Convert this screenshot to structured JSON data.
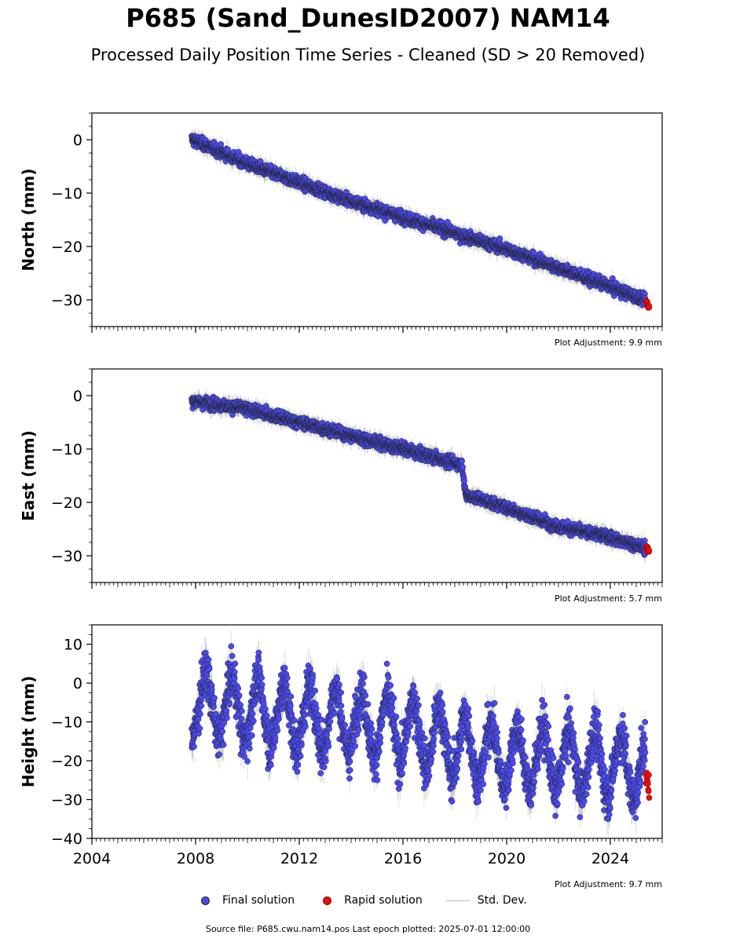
{
  "title": "P685 (Sand_DunesID2007) NAM14",
  "subtitle": "Processed Daily Position Time Series - Cleaned (SD > 20 Removed)",
  "legend": {
    "final": "Final solution",
    "rapid": "Rapid solution",
    "std": "Std. Dev."
  },
  "source": "Source file: P685.cwu.nam14.pos  Last epoch plotted: 2025-07-01 12:00:00",
  "colors": {
    "final": "#4a4af0",
    "rapid": "#e41010",
    "std": "#bbbbbb"
  },
  "chart_data": [
    {
      "type": "scatter",
      "ylabel": "North (mm)",
      "adjustment": "Plot Adjustment: 9.9 mm",
      "xlim": [
        2004,
        2026
      ],
      "ylim": [
        -35,
        5
      ],
      "yticks": [
        0,
        -10,
        -20,
        -30
      ],
      "ytick_labels": [
        "0",
        "−10",
        "−20",
        "−30"
      ],
      "show_xtick_labels": false,
      "series": [
        {
          "name": "Final solution",
          "x": [
            2007.9,
            2010,
            2012,
            2014,
            2016,
            2018,
            2020,
            2022,
            2024,
            2025.3
          ],
          "y": [
            0,
            -4.5,
            -8,
            -11.5,
            -14.5,
            -17.5,
            -20.5,
            -24,
            -27.5,
            -30
          ]
        },
        {
          "name": "Rapid solution",
          "x": [
            2025.4,
            2025.5
          ],
          "y": [
            -30.5,
            -31.5
          ]
        }
      ]
    },
    {
      "type": "scatter",
      "ylabel": "East (mm)",
      "adjustment": "Plot Adjustment: 5.7 mm",
      "xlim": [
        2004,
        2026
      ],
      "ylim": [
        -35,
        5
      ],
      "yticks": [
        0,
        -10,
        -20,
        -30
      ],
      "ytick_labels": [
        "0",
        "−10",
        "−20",
        "−30"
      ],
      "show_xtick_labels": false,
      "series": [
        {
          "name": "Final solution",
          "x": [
            2007.9,
            2010,
            2012,
            2014,
            2016,
            2018.3,
            2018.4,
            2020,
            2022,
            2024,
            2025.3
          ],
          "y": [
            -1,
            -2.5,
            -5,
            -7.5,
            -10,
            -13,
            -18.5,
            -21,
            -24.5,
            -26.5,
            -28.5
          ]
        },
        {
          "name": "Rapid solution",
          "x": [
            2025.4,
            2025.5
          ],
          "y": [
            -28.5,
            -29
          ]
        }
      ]
    },
    {
      "type": "scatter",
      "ylabel": "Height (mm)",
      "adjustment": "Plot Adjustment: 9.7 mm",
      "xlim": [
        2004,
        2026
      ],
      "ylim": [
        -40,
        15
      ],
      "yticks": [
        10,
        0,
        -10,
        -20,
        -30,
        -40
      ],
      "ytick_labels": [
        "10",
        "0",
        "−10",
        "−20",
        "−30",
        "−40"
      ],
      "show_xtick_labels": true,
      "xticks": [
        2004,
        2008,
        2012,
        2016,
        2020,
        2024
      ],
      "xtick_labels": [
        "2004",
        "2008",
        "2012",
        "2016",
        "2020",
        "2024"
      ],
      "series": [
        {
          "name": "Final solution",
          "x": [
            2007.9,
            2010,
            2012,
            2014,
            2016,
            2018,
            2020,
            2022,
            2024,
            2025.3
          ],
          "y": [
            -5,
            -7,
            -9,
            -10,
            -12,
            -16,
            -19,
            -20,
            -21,
            -22
          ]
        },
        {
          "name": "Rapid solution",
          "x": [
            2025.4,
            2025.5
          ],
          "y": [
            -24,
            -28
          ]
        }
      ]
    }
  ]
}
